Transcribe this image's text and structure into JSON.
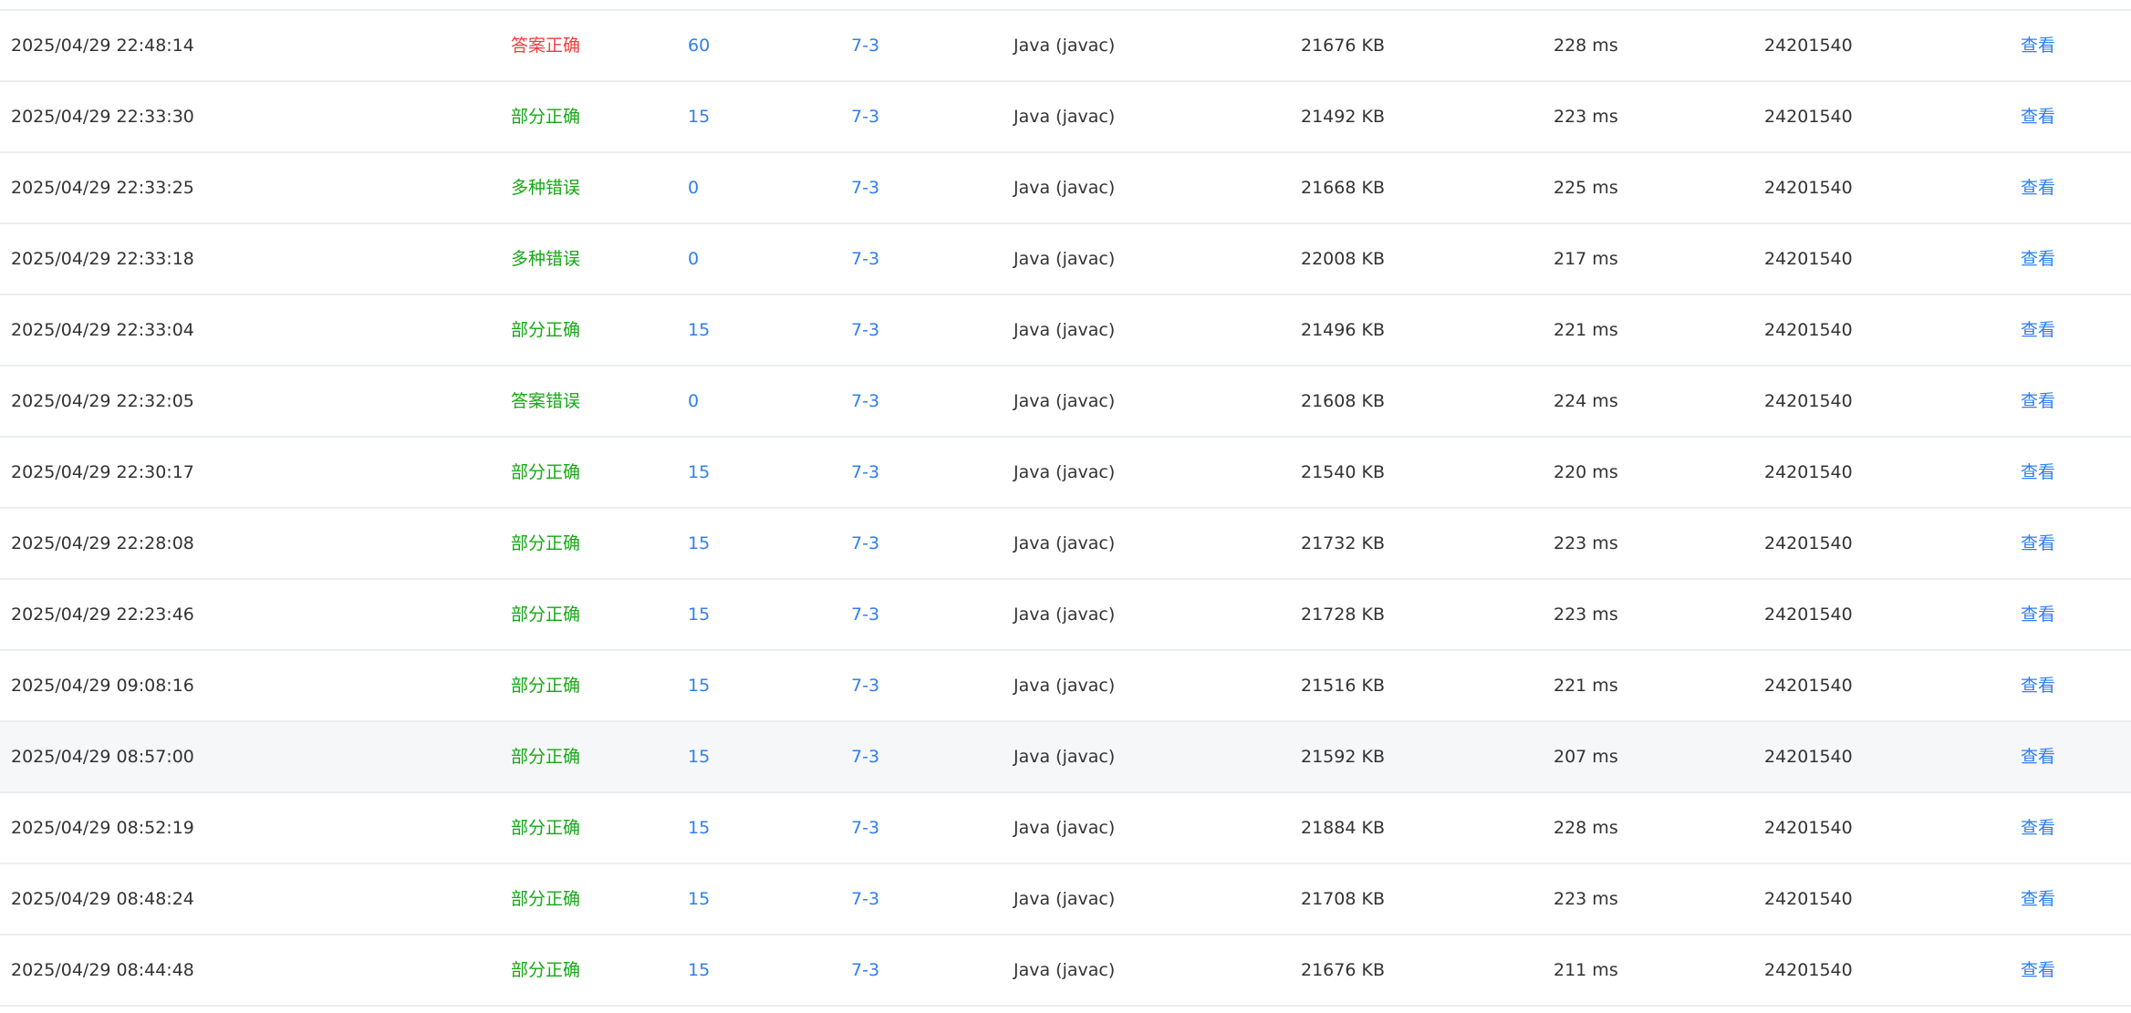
{
  "colors": {
    "accepted": "#f53b3b",
    "other": "#15a815",
    "link": "#2f7ff0"
  },
  "view_label": "查看",
  "rows": [
    {
      "time": "2025/04/29 22:48:14",
      "status": "答案正确",
      "accepted": true,
      "score": "60",
      "problem": "7-3",
      "compiler": "Java (javac)",
      "memory": "21676 KB",
      "time_used": "228 ms",
      "user": "24201540"
    },
    {
      "time": "2025/04/29 22:33:30",
      "status": "部分正确",
      "score": "15",
      "problem": "7-3",
      "compiler": "Java (javac)",
      "memory": "21492 KB",
      "time_used": "223 ms",
      "user": "24201540"
    },
    {
      "time": "2025/04/29 22:33:25",
      "status": "多种错误",
      "score": "0",
      "problem": "7-3",
      "compiler": "Java (javac)",
      "memory": "21668 KB",
      "time_used": "225 ms",
      "user": "24201540"
    },
    {
      "time": "2025/04/29 22:33:18",
      "status": "多种错误",
      "score": "0",
      "problem": "7-3",
      "compiler": "Java (javac)",
      "memory": "22008 KB",
      "time_used": "217 ms",
      "user": "24201540"
    },
    {
      "time": "2025/04/29 22:33:04",
      "status": "部分正确",
      "score": "15",
      "problem": "7-3",
      "compiler": "Java (javac)",
      "memory": "21496 KB",
      "time_used": "221 ms",
      "user": "24201540"
    },
    {
      "time": "2025/04/29 22:32:05",
      "status": "答案错误",
      "score": "0",
      "problem": "7-3",
      "compiler": "Java (javac)",
      "memory": "21608 KB",
      "time_used": "224 ms",
      "user": "24201540"
    },
    {
      "time": "2025/04/29 22:30:17",
      "status": "部分正确",
      "score": "15",
      "problem": "7-3",
      "compiler": "Java (javac)",
      "memory": "21540 KB",
      "time_used": "220 ms",
      "user": "24201540"
    },
    {
      "time": "2025/04/29 22:28:08",
      "status": "部分正确",
      "score": "15",
      "problem": "7-3",
      "compiler": "Java (javac)",
      "memory": "21732 KB",
      "time_used": "223 ms",
      "user": "24201540"
    },
    {
      "time": "2025/04/29 22:23:46",
      "status": "部分正确",
      "score": "15",
      "problem": "7-3",
      "compiler": "Java (javac)",
      "memory": "21728 KB",
      "time_used": "223 ms",
      "user": "24201540"
    },
    {
      "time": "2025/04/29 09:08:16",
      "status": "部分正确",
      "score": "15",
      "problem": "7-3",
      "compiler": "Java (javac)",
      "memory": "21516 KB",
      "time_used": "221 ms",
      "user": "24201540"
    },
    {
      "time": "2025/04/29 08:57:00",
      "status": "部分正确",
      "score": "15",
      "problem": "7-3",
      "compiler": "Java (javac)",
      "memory": "21592 KB",
      "time_used": "207 ms",
      "user": "24201540",
      "hovered": true
    },
    {
      "time": "2025/04/29 08:52:19",
      "status": "部分正确",
      "score": "15",
      "problem": "7-3",
      "compiler": "Java (javac)",
      "memory": "21884 KB",
      "time_used": "228 ms",
      "user": "24201540"
    },
    {
      "time": "2025/04/29 08:48:24",
      "status": "部分正确",
      "score": "15",
      "problem": "7-3",
      "compiler": "Java (javac)",
      "memory": "21708 KB",
      "time_used": "223 ms",
      "user": "24201540"
    },
    {
      "time": "2025/04/29 08:44:48",
      "status": "部分正确",
      "score": "15",
      "problem": "7-3",
      "compiler": "Java (javac)",
      "memory": "21676 KB",
      "time_used": "211 ms",
      "user": "24201540"
    }
  ]
}
